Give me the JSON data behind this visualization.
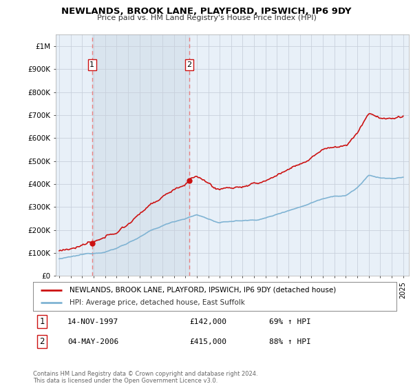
{
  "title": "NEWLANDS, BROOK LANE, PLAYFORD, IPSWICH, IP6 9DY",
  "subtitle": "Price paid vs. HM Land Registry's House Price Index (HPI)",
  "legend_entry1": "NEWLANDS, BROOK LANE, PLAYFORD, IPSWICH, IP6 9DY (detached house)",
  "legend_entry2": "HPI: Average price, detached house, East Suffolk",
  "footer": "Contains HM Land Registry data © Crown copyright and database right 2024.\nThis data is licensed under the Open Government Licence v3.0.",
  "transaction1_date": "14-NOV-1997",
  "transaction1_price": "£142,000",
  "transaction1_hpi": "69% ↑ HPI",
  "transaction1_year": 1997.87,
  "transaction1_value": 142000,
  "transaction2_date": "04-MAY-2006",
  "transaction2_price": "£415,000",
  "transaction2_hpi": "88% ↑ HPI",
  "transaction2_year": 2006.34,
  "transaction2_value": 415000,
  "hpi_color": "#7fb3d3",
  "price_color": "#cc1111",
  "marker_color": "#cc1111",
  "dashed_color": "#e88080",
  "plot_bg_color": "#e8f0f8",
  "background_color": "#ffffff",
  "grid_color": "#c8d0dc",
  "shade_color": "#d0dce8",
  "ylim": [
    0,
    1050000
  ],
  "xlim_start": 1994.7,
  "xlim_end": 2025.5
}
